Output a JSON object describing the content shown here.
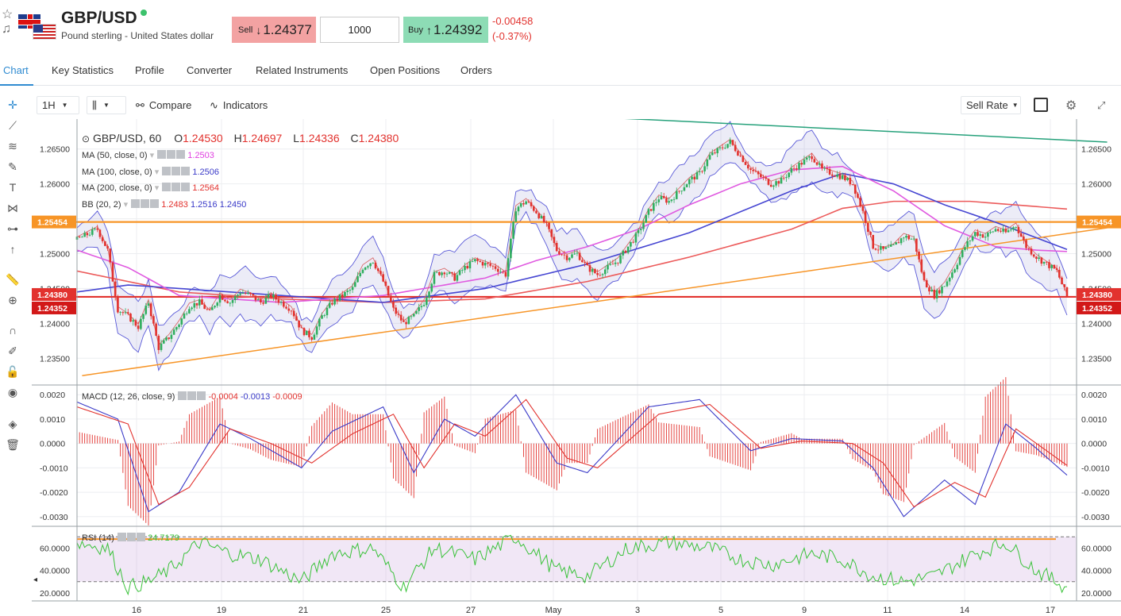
{
  "header": {
    "icons": [
      "star-icon",
      "bell-icon"
    ],
    "title": "GBP/USD",
    "subtitle": "Pound sterling - United States dollar",
    "sell": {
      "label": "Sell",
      "arrow": "↓",
      "price": "1.24377"
    },
    "quantity": "1000",
    "buy": {
      "label": "Buy",
      "arrow": "↑",
      "price": "1.24392"
    },
    "change": "-0.00458",
    "change_pct": "(-0.37%)",
    "colors": {
      "sell_bg": "#f3a2a2",
      "buy_bg": "#8ddcb5",
      "negative": "#e2322e",
      "online": "#3cc26c"
    }
  },
  "tabs": [
    {
      "label": "Chart",
      "active": true
    },
    {
      "label": "Key Statistics"
    },
    {
      "label": "Profile"
    },
    {
      "label": "Converter"
    },
    {
      "label": "Related Instruments"
    },
    {
      "label": "Open Positions"
    },
    {
      "label": "Orders"
    }
  ],
  "left_toolbar": [
    "crosshair-icon",
    "trend-line-icon",
    "fib-icon",
    "brush-icon",
    "text-icon",
    "pattern-icon",
    "prediction-icon",
    "arrow-up-icon",
    "ruler-icon",
    "zoom-in-icon",
    "magnet-icon",
    "lock-drawing-icon",
    "lock-icon",
    "eye-icon",
    "layers-icon",
    "trash-icon"
  ],
  "chart_toolbar": {
    "interval": "1H",
    "chart_type_icon": "candles-icon",
    "compare": "Compare",
    "indicators": "Indicators",
    "rate_type": "Sell Rate"
  },
  "legend": {
    "symbol": "GBP/USD, 60",
    "ohlc": {
      "O": "1.24530",
      "H": "1.24697",
      "L": "1.24336",
      "C": "1.24380"
    },
    "ma50": {
      "label": "MA (50, close, 0)",
      "value": "1.2503",
      "color": "#e040e0"
    },
    "ma100": {
      "label": "MA (100, close, 0)",
      "value": "1.2506",
      "color": "#3a3ac8"
    },
    "ma200": {
      "label": "MA (200, close, 0)",
      "value": "1.2564",
      "color": "#e2322e"
    },
    "bb": {
      "label": "BB (20, 2)",
      "v1": "1.2483",
      "v2": "1.2516",
      "v3": "1.2450"
    },
    "macd": {
      "label": "MACD (12, 26, close, 9)",
      "v1": "-0.0004",
      "v2": "-0.0013",
      "v3": "-0.0009"
    },
    "rsi": {
      "label": "RSI (14)",
      "value": "24.7179"
    }
  },
  "price_badges": {
    "upper": "1.25454",
    "last": "1.24380",
    "bid": "1.24352"
  },
  "chart_data": {
    "type": "candlestick",
    "title": "GBP/USD, 60",
    "price_axis": {
      "ticks": [
        "1.26500",
        "1.26000",
        "1.25500",
        "1.25000",
        "1.24500",
        "1.24000",
        "1.23500"
      ],
      "range": [
        1.2315,
        1.2685
      ]
    },
    "x_axis": {
      "ticks": [
        "16",
        "19",
        "21",
        "25",
        "27",
        "May",
        "3",
        "5",
        "9",
        "11",
        "14",
        "17"
      ]
    },
    "close_path": [
      [
        0,
        1.252
      ],
      [
        4,
        1.2535
      ],
      [
        6,
        1.2505
      ],
      [
        8,
        1.242
      ],
      [
        10,
        1.241
      ],
      [
        12,
        1.2395
      ],
      [
        14,
        1.243
      ],
      [
        16,
        1.2365
      ],
      [
        18,
        1.238
      ],
      [
        20,
        1.24
      ],
      [
        22,
        1.2425
      ],
      [
        24,
        1.243
      ],
      [
        26,
        1.2415
      ],
      [
        28,
        1.244
      ],
      [
        30,
        1.243
      ],
      [
        32,
        1.2445
      ],
      [
        34,
        1.244
      ],
      [
        36,
        1.243
      ],
      [
        38,
        1.244
      ],
      [
        40,
        1.243
      ],
      [
        42,
        1.242
      ],
      [
        44,
        1.239
      ],
      [
        46,
        1.238
      ],
      [
        48,
        1.241
      ],
      [
        50,
        1.243
      ],
      [
        52,
        1.244
      ],
      [
        54,
        1.245
      ],
      [
        56,
        1.248
      ],
      [
        58,
        1.249
      ],
      [
        60,
        1.246
      ],
      [
        62,
        1.242
      ],
      [
        64,
        1.24
      ],
      [
        66,
        1.241
      ],
      [
        68,
        1.243
      ],
      [
        70,
        1.247
      ],
      [
        72,
        1.2475
      ],
      [
        74,
        1.2465
      ],
      [
        76,
        1.248
      ],
      [
        78,
        1.249
      ],
      [
        80,
        1.2485
      ],
      [
        82,
        1.248
      ],
      [
        84,
        1.247
      ],
      [
        86,
        1.2565
      ],
      [
        88,
        1.2575
      ],
      [
        90,
        1.256
      ],
      [
        92,
        1.254
      ],
      [
        94,
        1.2505
      ],
      [
        96,
        1.2495
      ],
      [
        98,
        1.25
      ],
      [
        100,
        1.248
      ],
      [
        102,
        1.247
      ],
      [
        104,
        1.248
      ],
      [
        106,
        1.249
      ],
      [
        108,
        1.251
      ],
      [
        110,
        1.253
      ],
      [
        112,
        1.256
      ],
      [
        114,
        1.258
      ],
      [
        116,
        1.2575
      ],
      [
        118,
        1.259
      ],
      [
        120,
        1.2605
      ],
      [
        122,
        1.2615
      ],
      [
        124,
        1.264
      ],
      [
        126,
        1.265
      ],
      [
        128,
        1.266
      ],
      [
        130,
        1.264
      ],
      [
        132,
        1.262
      ],
      [
        134,
        1.261
      ],
      [
        136,
        1.26
      ],
      [
        138,
        1.2605
      ],
      [
        140,
        1.262
      ],
      [
        142,
        1.263
      ],
      [
        144,
        1.264
      ],
      [
        146,
        1.262
      ],
      [
        148,
        1.2615
      ],
      [
        150,
        1.261
      ],
      [
        152,
        1.26
      ],
      [
        154,
        1.256
      ],
      [
        156,
        1.251
      ],
      [
        158,
        1.2505
      ],
      [
        160,
        1.251
      ],
      [
        162,
        1.2525
      ],
      [
        164,
        1.252
      ],
      [
        166,
        1.246
      ],
      [
        168,
        1.244
      ],
      [
        170,
        1.2455
      ],
      [
        172,
        1.248
      ],
      [
        174,
        1.251
      ],
      [
        176,
        1.253
      ],
      [
        178,
        1.2525
      ],
      [
        180,
        1.2535
      ],
      [
        182,
        1.253
      ],
      [
        184,
        1.254
      ],
      [
        186,
        1.251
      ],
      [
        188,
        1.2495
      ],
      [
        190,
        1.2485
      ],
      [
        192,
        1.2475
      ],
      [
        194,
        1.2438
      ]
    ],
    "ma50": [
      [
        0,
        1.2505
      ],
      [
        10,
        1.248
      ],
      [
        20,
        1.244
      ],
      [
        40,
        1.243
      ],
      [
        60,
        1.244
      ],
      [
        80,
        1.2465
      ],
      [
        90,
        1.249
      ],
      [
        100,
        1.251
      ],
      [
        110,
        1.2535
      ],
      [
        120,
        1.257
      ],
      [
        130,
        1.26
      ],
      [
        140,
        1.262
      ],
      [
        150,
        1.2625
      ],
      [
        160,
        1.259
      ],
      [
        170,
        1.254
      ],
      [
        180,
        1.251
      ],
      [
        188,
        1.2505
      ],
      [
        194,
        1.2503
      ]
    ],
    "ma100": [
      [
        0,
        1.2445
      ],
      [
        10,
        1.2455
      ],
      [
        20,
        1.245
      ],
      [
        40,
        1.244
      ],
      [
        60,
        1.243
      ],
      [
        80,
        1.245
      ],
      [
        100,
        1.2485
      ],
      [
        120,
        1.253
      ],
      [
        140,
        1.259
      ],
      [
        150,
        1.2615
      ],
      [
        160,
        1.26
      ],
      [
        170,
        1.257
      ],
      [
        180,
        1.2545
      ],
      [
        194,
        1.2506
      ]
    ],
    "ma200": [
      [
        0,
        1.2475
      ],
      [
        20,
        1.2445
      ],
      [
        40,
        1.2435
      ],
      [
        60,
        1.243
      ],
      [
        80,
        1.2435
      ],
      [
        100,
        1.246
      ],
      [
        120,
        1.2495
      ],
      [
        140,
        1.2535
      ],
      [
        150,
        1.2565
      ],
      [
        160,
        1.2575
      ],
      [
        175,
        1.2575
      ],
      [
        194,
        1.2564
      ]
    ],
    "trendlines": [
      {
        "color": "#f79527",
        "points": [
          [
            1,
            1.2325
          ],
          [
            200,
            1.2537
          ]
        ]
      },
      {
        "color": "#26a17b",
        "points": [
          [
            90,
            1.27
          ],
          [
            200,
            1.266
          ]
        ]
      }
    ],
    "horizontal_levels": [
      {
        "value": 1.25454,
        "color": "#f79527"
      },
      {
        "value": 1.2438,
        "color": "#e2322e"
      }
    ],
    "macd": {
      "axis_ticks": [
        "0.0020",
        "0.0010",
        "0.0000",
        "-0.0010",
        "-0.0020",
        "-0.0030"
      ],
      "range": [
        -0.0033,
        0.0023
      ],
      "line": [
        [
          0,
          0.0017
        ],
        [
          8,
          0.001
        ],
        [
          14,
          -0.0028
        ],
        [
          20,
          -0.002
        ],
        [
          28,
          0.0008
        ],
        [
          34,
          0.0002
        ],
        [
          44,
          -0.001
        ],
        [
          50,
          0.0005
        ],
        [
          60,
          0.0015
        ],
        [
          66,
          -0.0012
        ],
        [
          72,
          0.001
        ],
        [
          78,
          0.0003
        ],
        [
          86,
          0.002
        ],
        [
          94,
          -0.0008
        ],
        [
          100,
          -0.0012
        ],
        [
          112,
          0.0015
        ],
        [
          122,
          0.0018
        ],
        [
          132,
          -0.0003
        ],
        [
          140,
          0.0002
        ],
        [
          150,
          0.0001
        ],
        [
          156,
          -0.001
        ],
        [
          162,
          -0.003
        ],
        [
          170,
          -0.0015
        ],
        [
          176,
          -0.0025
        ],
        [
          182,
          0.0008
        ],
        [
          188,
          -0.0002
        ],
        [
          194,
          -0.0013
        ]
      ],
      "signal": [
        [
          0,
          0.0015
        ],
        [
          10,
          0.0008
        ],
        [
          16,
          -0.0025
        ],
        [
          22,
          -0.0018
        ],
        [
          30,
          0.0006
        ],
        [
          38,
          0.0
        ],
        [
          46,
          -0.0008
        ],
        [
          54,
          0.0004
        ],
        [
          62,
          0.0012
        ],
        [
          68,
          -0.001
        ],
        [
          74,
          0.0008
        ],
        [
          80,
          0.0003
        ],
        [
          88,
          0.0018
        ],
        [
          96,
          -0.0006
        ],
        [
          102,
          -0.001
        ],
        [
          114,
          0.0012
        ],
        [
          124,
          0.0016
        ],
        [
          134,
          -0.0002
        ],
        [
          142,
          0.0001
        ],
        [
          152,
          0.0
        ],
        [
          158,
          -0.0008
        ],
        [
          164,
          -0.0026
        ],
        [
          172,
          -0.0016
        ],
        [
          178,
          -0.0022
        ],
        [
          184,
          0.0006
        ],
        [
          190,
          -0.0003
        ],
        [
          194,
          -0.0009
        ]
      ]
    },
    "rsi": {
      "axis_ticks": [
        "60.0000",
        "40.0000",
        "20.0000"
      ],
      "range": [
        15,
        78
      ],
      "bands": [
        70,
        30
      ],
      "line": [
        [
          0,
          65
        ],
        [
          6,
          60
        ],
        [
          10,
          25
        ],
        [
          14,
          30
        ],
        [
          18,
          40
        ],
        [
          24,
          65
        ],
        [
          30,
          55
        ],
        [
          36,
          50
        ],
        [
          44,
          30
        ],
        [
          50,
          55
        ],
        [
          58,
          60
        ],
        [
          64,
          25
        ],
        [
          70,
          60
        ],
        [
          78,
          50
        ],
        [
          86,
          70
        ],
        [
          94,
          40
        ],
        [
          100,
          35
        ],
        [
          108,
          60
        ],
        [
          116,
          65
        ],
        [
          124,
          60
        ],
        [
          130,
          50
        ],
        [
          136,
          45
        ],
        [
          144,
          55
        ],
        [
          150,
          50
        ],
        [
          156,
          35
        ],
        [
          162,
          30
        ],
        [
          168,
          35
        ],
        [
          176,
          55
        ],
        [
          182,
          65
        ],
        [
          188,
          40
        ],
        [
          194,
          25
        ]
      ]
    }
  }
}
